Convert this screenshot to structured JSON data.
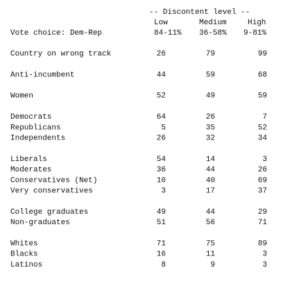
{
  "header": {
    "group_title": "-- Discontent level --",
    "row_header": "Vote choice: Dem-Rep",
    "columns": [
      {
        "name": "Low",
        "range": "84-11%"
      },
      {
        "name": "Medium",
        "range": "36-58%"
      },
      {
        "name": "High",
        "range": "9-81%"
      }
    ]
  },
  "groups": [
    {
      "rows": [
        {
          "label": "Country on wrong track",
          "values": [
            26,
            79,
            99
          ]
        }
      ]
    },
    {
      "rows": [
        {
          "label": "Anti-incumbent",
          "values": [
            44,
            59,
            68
          ]
        }
      ]
    },
    {
      "rows": [
        {
          "label": "Women",
          "values": [
            52,
            49,
            59
          ]
        }
      ]
    },
    {
      "rows": [
        {
          "label": "Democrats",
          "values": [
            64,
            26,
            7
          ]
        },
        {
          "label": "Republicans",
          "values": [
            5,
            35,
            52
          ]
        },
        {
          "label": "Independents",
          "values": [
            26,
            32,
            34
          ]
        }
      ]
    },
    {
      "rows": [
        {
          "label": "Liberals",
          "values": [
            54,
            14,
            3
          ]
        },
        {
          "label": "Moderates",
          "values": [
            36,
            44,
            26
          ]
        },
        {
          "label": "Conservatives (Net)",
          "values": [
            10,
            40,
            69
          ]
        },
        {
          "label": "Very conservatives",
          "values": [
            3,
            17,
            37
          ]
        }
      ]
    },
    {
      "rows": [
        {
          "label": "College graduates",
          "values": [
            49,
            44,
            29
          ]
        },
        {
          "label": "Non-graduates",
          "values": [
            51,
            56,
            71
          ]
        }
      ]
    },
    {
      "rows": [
        {
          "label": "Whites",
          "values": [
            71,
            75,
            89
          ]
        },
        {
          "label": "Blacks",
          "values": [
            16,
            11,
            3
          ]
        },
        {
          "label": "Latinos",
          "values": [
            8,
            9,
            3
          ]
        }
      ]
    }
  ]
}
